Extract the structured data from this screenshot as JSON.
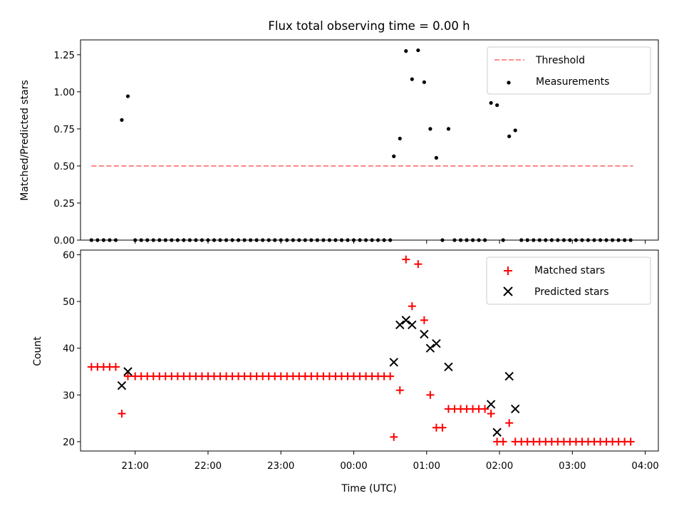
{
  "chart_data": [
    {
      "type": "scatter",
      "title": "Flux total observing time = 0.00 h",
      "xlabel": "",
      "ylabel": "Matched/Predicted stars",
      "xlim": [
        20.25,
        4.18
      ],
      "ylim": [
        0.0,
        1.35
      ],
      "yticks": [
        0.0,
        0.25,
        0.5,
        0.75,
        1.0,
        1.25
      ],
      "ytick_labels": [
        "0.00",
        "0.25",
        "0.50",
        "0.75",
        "1.00",
        "1.25"
      ],
      "legend_position": "upper right",
      "threshold": {
        "name": "Threshold",
        "value": 0.5,
        "x_start": "20:24",
        "x_end": "03:50",
        "color": "#ff7f7f",
        "style": "dashed"
      },
      "series": [
        {
          "name": "Measurements",
          "color": "#000000",
          "marker": "dot",
          "points": [
            [
              "20:24",
              0
            ],
            [
              "20:29",
              0
            ],
            [
              "20:34",
              0
            ],
            [
              "20:39",
              0
            ],
            [
              "20:44",
              0
            ],
            [
              "20:49",
              0.81
            ],
            [
              "20:54",
              0.97
            ],
            [
              "21:00",
              0
            ],
            [
              "21:05",
              0
            ],
            [
              "21:10",
              0
            ],
            [
              "21:15",
              0
            ],
            [
              "21:20",
              0
            ],
            [
              "21:25",
              0
            ],
            [
              "21:30",
              0
            ],
            [
              "21:35",
              0
            ],
            [
              "21:40",
              0
            ],
            [
              "21:45",
              0
            ],
            [
              "21:50",
              0
            ],
            [
              "21:55",
              0
            ],
            [
              "22:00",
              0
            ],
            [
              "22:05",
              0
            ],
            [
              "22:10",
              0
            ],
            [
              "22:15",
              0
            ],
            [
              "22:20",
              0
            ],
            [
              "22:25",
              0
            ],
            [
              "22:30",
              0
            ],
            [
              "22:35",
              0
            ],
            [
              "22:40",
              0
            ],
            [
              "22:45",
              0
            ],
            [
              "22:50",
              0
            ],
            [
              "22:55",
              0
            ],
            [
              "23:00",
              0
            ],
            [
              "23:05",
              0
            ],
            [
              "23:10",
              0
            ],
            [
              "23:15",
              0
            ],
            [
              "23:20",
              0
            ],
            [
              "23:25",
              0
            ],
            [
              "23:30",
              0
            ],
            [
              "23:35",
              0
            ],
            [
              "23:40",
              0
            ],
            [
              "23:45",
              0
            ],
            [
              "23:50",
              0
            ],
            [
              "23:55",
              0
            ],
            [
              "00:00",
              0
            ],
            [
              "00:05",
              0
            ],
            [
              "00:10",
              0
            ],
            [
              "00:15",
              0
            ],
            [
              "00:20",
              0
            ],
            [
              "00:25",
              0
            ],
            [
              "00:30",
              0
            ],
            [
              "00:33",
              0.565
            ],
            [
              "00:38",
              0.685
            ],
            [
              "00:43",
              1.275
            ],
            [
              "00:48",
              1.085
            ],
            [
              "00:53",
              1.28
            ],
            [
              "00:58",
              1.065
            ],
            [
              "01:03",
              0.75
            ],
            [
              "01:08",
              0.555
            ],
            [
              "01:13",
              0
            ],
            [
              "01:18",
              0.75
            ],
            [
              "01:23",
              0
            ],
            [
              "01:28",
              0
            ],
            [
              "01:33",
              0
            ],
            [
              "01:38",
              0
            ],
            [
              "01:43",
              0
            ],
            [
              "01:48",
              0
            ],
            [
              "01:53",
              0.925
            ],
            [
              "01:58",
              0.91
            ],
            [
              "02:03",
              0
            ],
            [
              "02:08",
              0.7
            ],
            [
              "02:13",
              0.74
            ],
            [
              "02:18",
              0
            ],
            [
              "02:23",
              0
            ],
            [
              "02:28",
              0
            ],
            [
              "02:33",
              0
            ],
            [
              "02:38",
              0
            ],
            [
              "02:43",
              0
            ],
            [
              "02:48",
              0
            ],
            [
              "02:53",
              0
            ],
            [
              "02:58",
              0
            ],
            [
              "03:03",
              0
            ],
            [
              "03:08",
              0
            ],
            [
              "03:13",
              0
            ],
            [
              "03:18",
              0
            ],
            [
              "03:23",
              0
            ],
            [
              "03:28",
              0
            ],
            [
              "03:33",
              0
            ],
            [
              "03:38",
              0
            ],
            [
              "03:43",
              0
            ],
            [
              "03:48",
              0
            ]
          ]
        }
      ]
    },
    {
      "type": "scatter",
      "title": "",
      "xlabel": "Time (UTC)",
      "ylabel": "Count",
      "xlim": [
        20.25,
        4.18
      ],
      "ylim": [
        18,
        61
      ],
      "yticks": [
        20,
        30,
        40,
        50,
        60
      ],
      "ytick_labels": [
        "20",
        "30",
        "40",
        "50",
        "60"
      ],
      "xticks": [
        "21:00",
        "22:00",
        "23:00",
        "00:00",
        "01:00",
        "02:00",
        "03:00",
        "04:00"
      ],
      "legend_position": "upper right",
      "series": [
        {
          "name": "Matched stars",
          "color": "#ff0000",
          "marker": "plus",
          "points": [
            [
              "20:24",
              36
            ],
            [
              "20:29",
              36
            ],
            [
              "20:34",
              36
            ],
            [
              "20:39",
              36
            ],
            [
              "20:44",
              36
            ],
            [
              "20:49",
              26
            ],
            [
              "20:54",
              34
            ],
            [
              "21:00",
              34
            ],
            [
              "21:05",
              34
            ],
            [
              "21:10",
              34
            ],
            [
              "21:15",
              34
            ],
            [
              "21:20",
              34
            ],
            [
              "21:25",
              34
            ],
            [
              "21:30",
              34
            ],
            [
              "21:35",
              34
            ],
            [
              "21:40",
              34
            ],
            [
              "21:45",
              34
            ],
            [
              "21:50",
              34
            ],
            [
              "21:55",
              34
            ],
            [
              "22:00",
              34
            ],
            [
              "22:05",
              34
            ],
            [
              "22:10",
              34
            ],
            [
              "22:15",
              34
            ],
            [
              "22:20",
              34
            ],
            [
              "22:25",
              34
            ],
            [
              "22:30",
              34
            ],
            [
              "22:35",
              34
            ],
            [
              "22:40",
              34
            ],
            [
              "22:45",
              34
            ],
            [
              "22:50",
              34
            ],
            [
              "22:55",
              34
            ],
            [
              "23:00",
              34
            ],
            [
              "23:05",
              34
            ],
            [
              "23:10",
              34
            ],
            [
              "23:15",
              34
            ],
            [
              "23:20",
              34
            ],
            [
              "23:25",
              34
            ],
            [
              "23:30",
              34
            ],
            [
              "23:35",
              34
            ],
            [
              "23:40",
              34
            ],
            [
              "23:45",
              34
            ],
            [
              "23:50",
              34
            ],
            [
              "23:55",
              34
            ],
            [
              "00:00",
              34
            ],
            [
              "00:05",
              34
            ],
            [
              "00:10",
              34
            ],
            [
              "00:15",
              34
            ],
            [
              "00:20",
              34
            ],
            [
              "00:25",
              34
            ],
            [
              "00:30",
              34
            ],
            [
              "00:33",
              21
            ],
            [
              "00:38",
              31
            ],
            [
              "00:43",
              59
            ],
            [
              "00:48",
              49
            ],
            [
              "00:53",
              58
            ],
            [
              "00:58",
              46
            ],
            [
              "01:03",
              30
            ],
            [
              "01:08",
              23
            ],
            [
              "01:13",
              23
            ],
            [
              "01:18",
              27
            ],
            [
              "01:23",
              27
            ],
            [
              "01:28",
              27
            ],
            [
              "01:33",
              27
            ],
            [
              "01:38",
              27
            ],
            [
              "01:43",
              27
            ],
            [
              "01:48",
              27
            ],
            [
              "01:53",
              26
            ],
            [
              "01:58",
              20
            ],
            [
              "02:03",
              20
            ],
            [
              "02:08",
              24
            ],
            [
              "02:13",
              20
            ],
            [
              "02:18",
              20
            ],
            [
              "02:23",
              20
            ],
            [
              "02:28",
              20
            ],
            [
              "02:33",
              20
            ],
            [
              "02:38",
              20
            ],
            [
              "02:43",
              20
            ],
            [
              "02:48",
              20
            ],
            [
              "02:53",
              20
            ],
            [
              "02:58",
              20
            ],
            [
              "03:03",
              20
            ],
            [
              "03:08",
              20
            ],
            [
              "03:13",
              20
            ],
            [
              "03:18",
              20
            ],
            [
              "03:23",
              20
            ],
            [
              "03:28",
              20
            ],
            [
              "03:33",
              20
            ],
            [
              "03:38",
              20
            ],
            [
              "03:43",
              20
            ],
            [
              "03:48",
              20
            ]
          ]
        },
        {
          "name": "Predicted stars",
          "color": "#000000",
          "marker": "x",
          "points": [
            [
              "20:49",
              32
            ],
            [
              "20:54",
              35
            ],
            [
              "00:33",
              37
            ],
            [
              "00:38",
              45
            ],
            [
              "00:43",
              46
            ],
            [
              "00:48",
              45
            ],
            [
              "00:58",
              43
            ],
            [
              "01:03",
              40
            ],
            [
              "01:08",
              41
            ],
            [
              "01:18",
              36
            ],
            [
              "01:53",
              28
            ],
            [
              "01:58",
              22
            ],
            [
              "02:08",
              34
            ],
            [
              "02:13",
              27
            ]
          ]
        }
      ]
    }
  ]
}
